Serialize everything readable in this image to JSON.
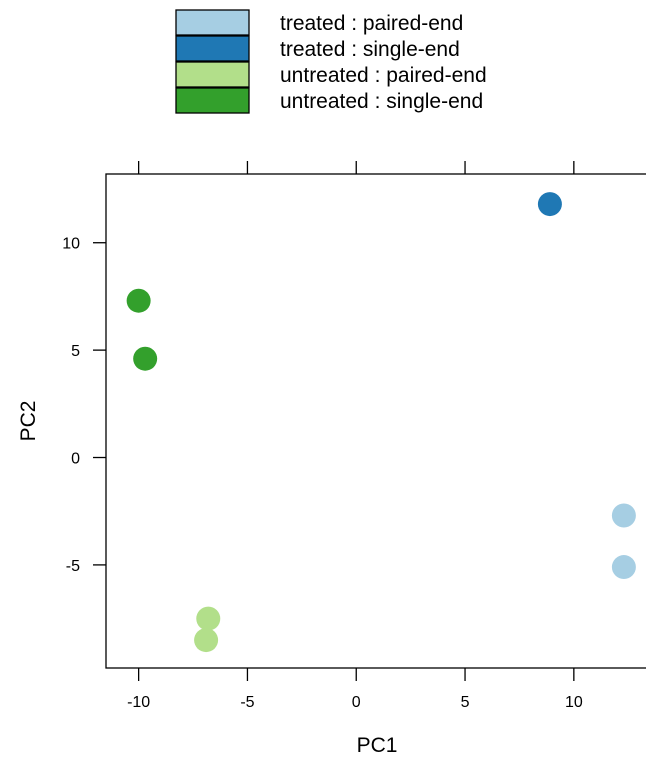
{
  "chart_data": {
    "type": "scatter",
    "title": "",
    "xlabel": "PC1",
    "ylabel": "PC2",
    "xlim": [
      -11.5,
      13.5
    ],
    "ylim": [
      -9.8,
      13.2
    ],
    "grid": false,
    "legend_position": "top",
    "x_ticks": [
      -10,
      -5,
      0,
      5,
      10
    ],
    "x_tick_labels": [
      "-10",
      "-5",
      "0",
      "5",
      "10"
    ],
    "y_ticks": [
      -5,
      0,
      5,
      10
    ],
    "y_tick_labels": [
      "-5",
      "0",
      "5",
      "10"
    ],
    "series": [
      {
        "name": "treated : paired-end",
        "color": "#a6cee3",
        "points": [
          {
            "x": 12.3,
            "y": -2.7
          },
          {
            "x": 12.3,
            "y": -5.1
          }
        ]
      },
      {
        "name": "treated : single-end",
        "color": "#1f78b4",
        "points": [
          {
            "x": 8.9,
            "y": 11.8
          }
        ]
      },
      {
        "name": "untreated : paired-end",
        "color": "#b2df8a",
        "points": [
          {
            "x": -6.8,
            "y": -7.5
          },
          {
            "x": -6.9,
            "y": -8.5
          }
        ]
      },
      {
        "name": "untreated : single-end",
        "color": "#33a02c",
        "points": [
          {
            "x": -10.0,
            "y": 7.3
          },
          {
            "x": -9.7,
            "y": 4.6
          }
        ]
      }
    ]
  }
}
